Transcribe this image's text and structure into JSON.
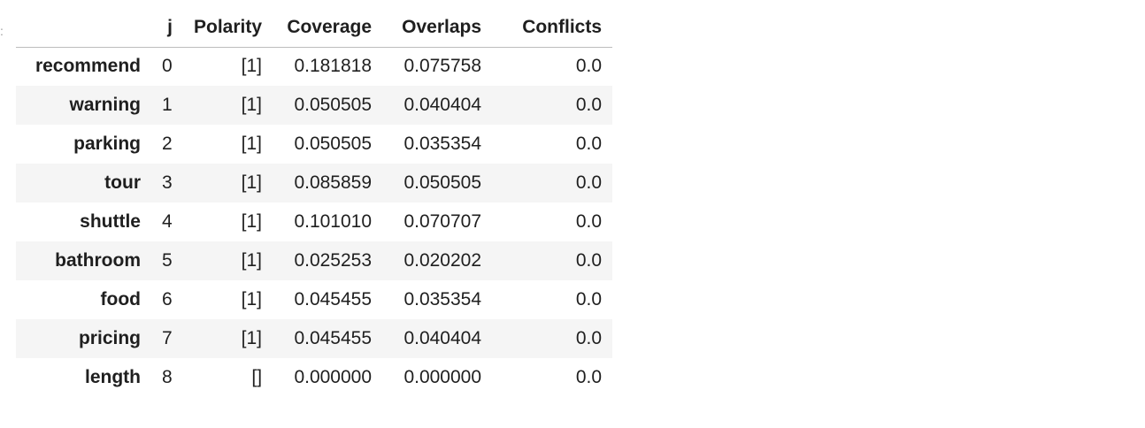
{
  "table": {
    "columns": [
      "j",
      "Polarity",
      "Coverage",
      "Overlaps",
      "Conflicts"
    ],
    "rows": [
      {
        "index": "recommend",
        "j": "0",
        "polarity": "[1]",
        "coverage": "0.181818",
        "overlaps": "0.075758",
        "conflicts": "0.0"
      },
      {
        "index": "warning",
        "j": "1",
        "polarity": "[1]",
        "coverage": "0.050505",
        "overlaps": "0.040404",
        "conflicts": "0.0"
      },
      {
        "index": "parking",
        "j": "2",
        "polarity": "[1]",
        "coverage": "0.050505",
        "overlaps": "0.035354",
        "conflicts": "0.0"
      },
      {
        "index": "tour",
        "j": "3",
        "polarity": "[1]",
        "coverage": "0.085859",
        "overlaps": "0.050505",
        "conflicts": "0.0"
      },
      {
        "index": "shuttle",
        "j": "4",
        "polarity": "[1]",
        "coverage": "0.101010",
        "overlaps": "0.070707",
        "conflicts": "0.0"
      },
      {
        "index": "bathroom",
        "j": "5",
        "polarity": "[1]",
        "coverage": "0.025253",
        "overlaps": "0.020202",
        "conflicts": "0.0"
      },
      {
        "index": "food",
        "j": "6",
        "polarity": "[1]",
        "coverage": "0.045455",
        "overlaps": "0.035354",
        "conflicts": "0.0"
      },
      {
        "index": "pricing",
        "j": "7",
        "polarity": "[1]",
        "coverage": "0.045455",
        "overlaps": "0.040404",
        "conflicts": "0.0"
      },
      {
        "index": "length",
        "j": "8",
        "polarity": "[]",
        "coverage": "0.000000",
        "overlaps": "0.000000",
        "conflicts": "0.0"
      }
    ]
  }
}
